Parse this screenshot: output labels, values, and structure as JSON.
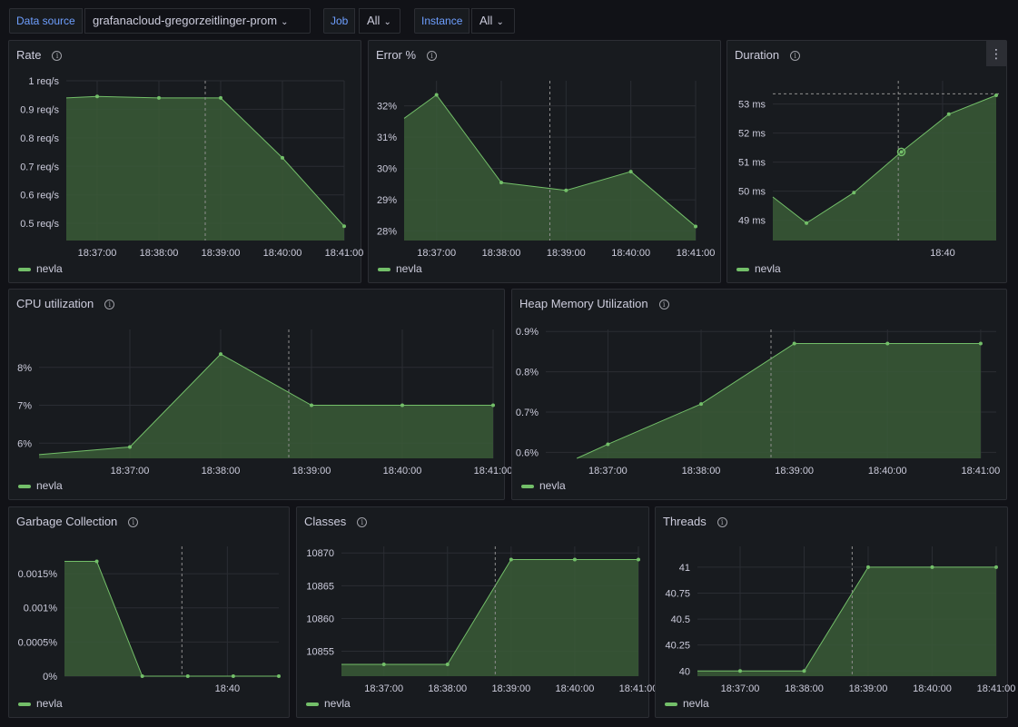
{
  "variables": [
    {
      "label": "Data source",
      "value": "grafanacloud-gregorzeitlinger-prom"
    },
    {
      "label": "Job",
      "value": "All"
    },
    {
      "label": "Instance",
      "value": "All"
    }
  ],
  "colors": {
    "series": "#73bf69",
    "fill": "#3a5a37",
    "grid": "#2a2d33",
    "panel": "#181b1f",
    "background": "#111217"
  },
  "icons": {
    "info": "info-circle-icon",
    "chevron": "chevron-down-icon",
    "menu": "vertical-dots-menu-icon"
  },
  "info_glyph": "i",
  "chevron_glyph": "⌄",
  "menu_glyph": "⋮",
  "panels": [
    {
      "id": "rate",
      "title": "Rate",
      "legend": "nevla",
      "has_menu": false,
      "chart_data": {
        "type": "area",
        "x": [
          "18:36:30",
          "18:37:00",
          "18:38:00",
          "18:39:00",
          "18:40:00",
          "18:41:00"
        ],
        "y": [
          0.94,
          0.945,
          0.94,
          0.94,
          0.73,
          0.49
        ],
        "ylim": [
          0.44,
          1.0
        ],
        "yticks": [
          {
            "v": 1.0,
            "l": "1 req/s"
          },
          {
            "v": 0.9,
            "l": "0.9 req/s"
          },
          {
            "v": 0.8,
            "l": "0.8 req/s"
          },
          {
            "v": 0.7,
            "l": "0.7 req/s"
          },
          {
            "v": 0.6,
            "l": "0.6 req/s"
          },
          {
            "v": 0.5,
            "l": "0.5 req/s"
          }
        ],
        "xticks": [
          "18:37:00",
          "18:38:00",
          "18:39:00",
          "18:40:00",
          "18:41:00"
        ],
        "xlim": [
          "18:36:30",
          "18:41:00"
        ],
        "cursor": "18:38:45"
      }
    },
    {
      "id": "error",
      "title": "Error %",
      "legend": "nevla",
      "has_menu": false,
      "chart_data": {
        "type": "area",
        "x": [
          "18:36:30",
          "18:37:00",
          "18:38:00",
          "18:39:00",
          "18:40:00",
          "18:41:00"
        ],
        "y": [
          31.6,
          32.35,
          29.55,
          29.3,
          29.9,
          28.15
        ],
        "ylim": [
          27.7,
          32.8
        ],
        "yticks": [
          {
            "v": 32,
            "l": "32%"
          },
          {
            "v": 31,
            "l": "31%"
          },
          {
            "v": 30,
            "l": "30%"
          },
          {
            "v": 29,
            "l": "29%"
          },
          {
            "v": 28,
            "l": "28%"
          }
        ],
        "xticks": [
          "18:37:00",
          "18:38:00",
          "18:39:00",
          "18:40:00",
          "18:41:00"
        ],
        "xlim": [
          "18:36:30",
          "18:41:00"
        ],
        "cursor": "18:38:45"
      }
    },
    {
      "id": "duration",
      "title": "Duration",
      "legend": "nevla",
      "has_menu": true,
      "chart_data": {
        "type": "area",
        "x": [
          "18:37:00",
          "18:37:22",
          "18:37:53",
          "18:38:24",
          "18:38:55",
          "18:39:26"
        ],
        "y": [
          49.8,
          48.9,
          49.95,
          51.35,
          52.65,
          53.3
        ],
        "ylim": [
          48.3,
          53.8
        ],
        "yticks": [
          {
            "v": 53,
            "l": "53 ms"
          },
          {
            "v": 52,
            "l": "52 ms"
          },
          {
            "v": 51,
            "l": "51 ms"
          },
          {
            "v": 50,
            "l": "50 ms"
          },
          {
            "v": 49,
            "l": "49 ms"
          }
        ],
        "xticks": [
          "18:40"
        ],
        "xlim": [
          "18:37:00",
          "18:39:26"
        ],
        "cursor": "18:38:22",
        "threshold": 53.35
      }
    },
    {
      "id": "cpu",
      "title": "CPU utilization",
      "legend": "nevla",
      "has_menu": false,
      "chart_data": {
        "type": "area",
        "x": [
          "18:36:00",
          "18:37:00",
          "18:38:00",
          "18:39:00",
          "18:40:00",
          "18:41:00"
        ],
        "y": [
          5.7,
          5.9,
          8.35,
          7.0,
          7.0,
          7.0
        ],
        "ylim": [
          5.6,
          9.0
        ],
        "yticks": [
          {
            "v": 8,
            "l": "8%"
          },
          {
            "v": 7,
            "l": "7%"
          },
          {
            "v": 6,
            "l": "6%"
          }
        ],
        "xticks": [
          "18:37:00",
          "18:38:00",
          "18:39:00",
          "18:40:00",
          "18:41:00"
        ],
        "xlim": [
          "18:36:00",
          "18:41:00"
        ],
        "cursor": "18:38:45"
      }
    },
    {
      "id": "heap",
      "title": "Heap Memory Utilization",
      "legend": "nevla",
      "has_menu": false,
      "chart_data": {
        "type": "area",
        "x": [
          "18:36:40",
          "18:37:00",
          "18:38:00",
          "18:39:00",
          "18:40:00",
          "18:41:00"
        ],
        "y": [
          0.585,
          0.62,
          0.72,
          0.87,
          0.87,
          0.87
        ],
        "ylim": [
          0.585,
          0.905
        ],
        "yticks": [
          {
            "v": 0.9,
            "l": "0.9%"
          },
          {
            "v": 0.8,
            "l": "0.8%"
          },
          {
            "v": 0.7,
            "l": "0.7%"
          },
          {
            "v": 0.6,
            "l": "0.6%"
          }
        ],
        "xticks": [
          "18:37:00",
          "18:38:00",
          "18:39:00",
          "18:40:00",
          "18:41:00"
        ],
        "xlim": [
          "18:36:20",
          "18:41:10"
        ],
        "cursor": "18:38:45"
      }
    },
    {
      "id": "gc",
      "title": "Garbage Collection",
      "legend": "nevla",
      "has_menu": false,
      "chart_data": {
        "type": "area",
        "x": [
          "18:37:00",
          "18:37:22",
          "18:37:53",
          "18:38:24",
          "18:38:55",
          "18:39:26"
        ],
        "y": [
          0.00168,
          0.00168,
          0,
          0,
          0,
          0
        ],
        "ylim": [
          0,
          0.0019
        ],
        "yticks": [
          {
            "v": 0.0015,
            "l": "0.0015%"
          },
          {
            "v": 0.001,
            "l": "0.001%"
          },
          {
            "v": 0.0005,
            "l": "0.0005%"
          },
          {
            "v": 0,
            "l": "0%"
          }
        ],
        "xticks": [
          "18:40"
        ],
        "xlim": [
          "18:37:00",
          "18:39:26"
        ],
        "cursor": "18:38:20"
      }
    },
    {
      "id": "classes",
      "title": "Classes",
      "legend": "nevla",
      "has_menu": false,
      "chart_data": {
        "type": "area",
        "x": [
          "18:36:20",
          "18:37:00",
          "18:38:00",
          "18:39:00",
          "18:40:00",
          "18:41:00"
        ],
        "y": [
          10853,
          10853,
          10853,
          10869,
          10869,
          10869
        ],
        "ylim": [
          10851.2,
          10871
        ],
        "yticks": [
          {
            "v": 10870,
            "l": "10870"
          },
          {
            "v": 10865,
            "l": "10865"
          },
          {
            "v": 10860,
            "l": "10860"
          },
          {
            "v": 10855,
            "l": "10855"
          }
        ],
        "xticks": [
          "18:37:00",
          "18:38:00",
          "18:39:00",
          "18:40:00",
          "18:41:00"
        ],
        "xlim": [
          "18:36:20",
          "18:41:00"
        ],
        "cursor": "18:38:45"
      }
    },
    {
      "id": "threads",
      "title": "Threads",
      "legend": "nevla",
      "has_menu": false,
      "chart_data": {
        "type": "area",
        "x": [
          "18:36:20",
          "18:37:00",
          "18:38:00",
          "18:39:00",
          "18:40:00",
          "18:41:00"
        ],
        "y": [
          40,
          40,
          40,
          41,
          41,
          41
        ],
        "ylim": [
          39.95,
          41.2
        ],
        "yticks": [
          {
            "v": 41,
            "l": "41"
          },
          {
            "v": 40.75,
            "l": "40.75"
          },
          {
            "v": 40.5,
            "l": "40.5"
          },
          {
            "v": 40.25,
            "l": "40.25"
          },
          {
            "v": 40,
            "l": "40"
          }
        ],
        "xticks": [
          "18:37:00",
          "18:38:00",
          "18:39:00",
          "18:40:00",
          "18:41:00"
        ],
        "xlim": [
          "18:36:20",
          "18:41:00"
        ],
        "cursor": "18:38:45"
      }
    }
  ]
}
